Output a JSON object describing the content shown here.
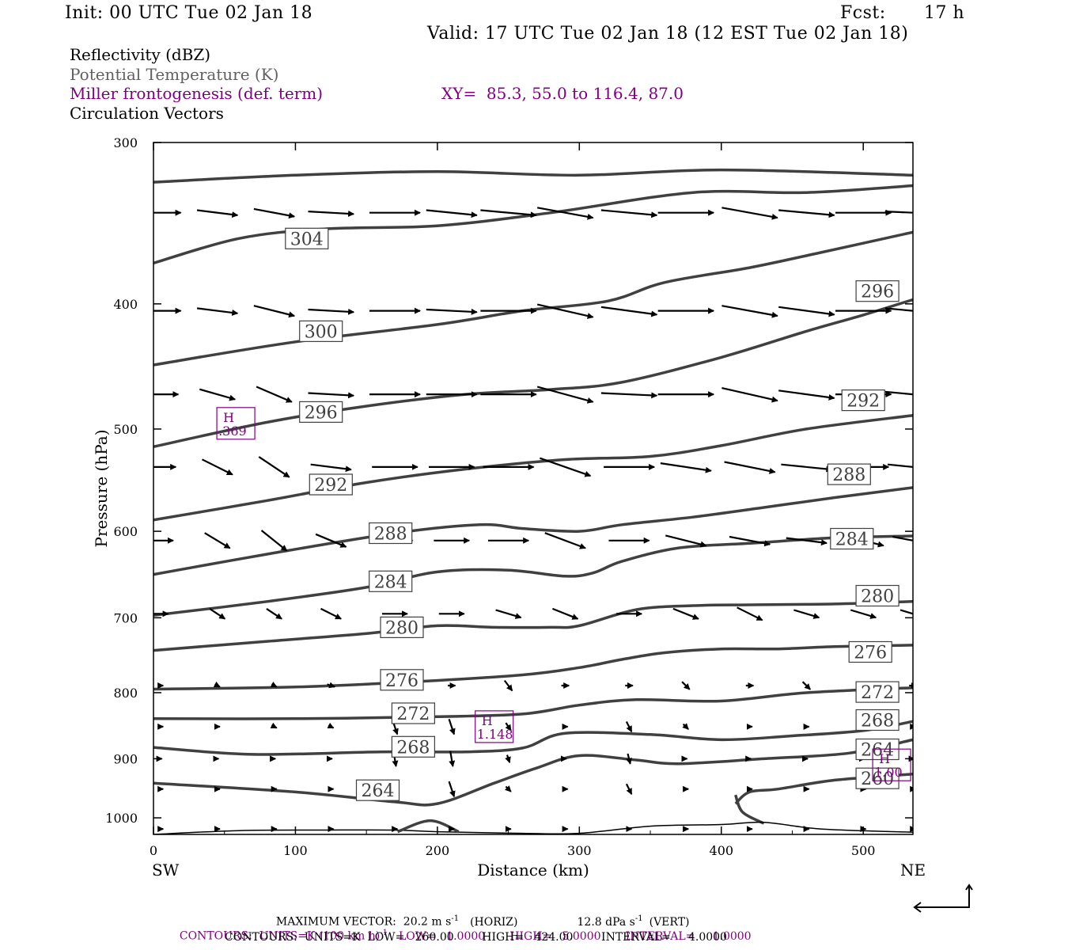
{
  "header": {
    "init": "Init: 00 UTC Tue 02 Jan 18",
    "fcst_label": "Fcst:",
    "fcst_value": "17 h",
    "valid": "Valid: 17 UTC Tue 02 Jan 18 (12 EST Tue 02 Jan 18)"
  },
  "legend": {
    "reflectivity": "Reflectivity (dBZ)",
    "theta": "Potential Temperature (K)",
    "frontogenesis": "Miller frontogenesis (def. term)",
    "xy": "XY=  85.3, 55.0 to 116.4, 87.0",
    "circulation": "Circulation Vectors"
  },
  "colors": {
    "theta_line": "#404040",
    "frontogenesis": "#800080",
    "legend_gray": "#606060",
    "vector": "#000000"
  },
  "chart_data": {
    "type": "line",
    "xlabel": "Distance (km)",
    "ylabel": "Pressure (hPa)",
    "xlim": [
      0,
      535
    ],
    "ylim": [
      1030,
      300
    ],
    "y_scale": "log",
    "x_ticks": [
      0,
      100,
      200,
      300,
      400,
      500
    ],
    "y_ticks": [
      300,
      400,
      500,
      600,
      700,
      800,
      900,
      1000
    ],
    "endpoints": {
      "left": "SW",
      "right": "NE"
    },
    "theta_contours": [
      {
        "level": 304,
        "points": [
          [
            0,
            322
          ],
          [
            100,
            318
          ],
          [
            200,
            316
          ],
          [
            300,
            318
          ],
          [
            400,
            315
          ],
          [
            535,
            318
          ]
        ],
        "labels": []
      },
      {
        "level": 304,
        "points": [
          [
            0,
            372
          ],
          [
            60,
            356
          ],
          [
            120,
            350
          ],
          [
            200,
            348
          ],
          [
            280,
            340
          ],
          [
            380,
            328
          ],
          [
            460,
            328
          ],
          [
            535,
            324
          ]
        ],
        "labels": [
          [
            108,
            356
          ]
        ]
      },
      {
        "level": 300,
        "points": [
          [
            0,
            446
          ],
          [
            100,
            428
          ],
          [
            200,
            415
          ],
          [
            260,
            405
          ],
          [
            320,
            398
          ],
          [
            360,
            385
          ],
          [
            420,
            375
          ],
          [
            470,
            365
          ],
          [
            535,
            352
          ]
        ],
        "labels": [
          [
            118,
            420
          ]
        ]
      },
      {
        "level": 296,
        "points": [
          [
            0,
            516
          ],
          [
            80,
            494
          ],
          [
            150,
            480
          ],
          [
            220,
            470
          ],
          [
            280,
            466
          ],
          [
            330,
            460
          ],
          [
            400,
            440
          ],
          [
            460,
            420
          ],
          [
            500,
            408
          ],
          [
            535,
            397
          ]
        ],
        "labels": [
          [
            118,
            485
          ],
          [
            510,
            391
          ]
        ]
      },
      {
        "level": 292,
        "points": [
          [
            0,
            588
          ],
          [
            80,
            568
          ],
          [
            150,
            550
          ],
          [
            220,
            537
          ],
          [
            290,
            528
          ],
          [
            350,
            525
          ],
          [
            400,
            515
          ],
          [
            460,
            500
          ],
          [
            535,
            488
          ]
        ],
        "labels": [
          [
            125,
            552
          ],
          [
            500,
            475
          ]
        ]
      },
      {
        "level": 288,
        "points": [
          [
            0,
            648
          ],
          [
            80,
            625
          ],
          [
            170,
            602
          ],
          [
            230,
            593
          ],
          [
            260,
            597
          ],
          [
            300,
            600
          ],
          [
            330,
            593
          ],
          [
            380,
            585
          ],
          [
            430,
            575
          ],
          [
            480,
            565
          ],
          [
            535,
            555
          ]
        ],
        "labels": [
          [
            167,
            602
          ],
          [
            490,
            542
          ]
        ]
      },
      {
        "level": 284,
        "points": [
          [
            0,
            697
          ],
          [
            80,
            680
          ],
          [
            150,
            663
          ],
          [
            200,
            645
          ],
          [
            250,
            643
          ],
          [
            290,
            650
          ],
          [
            310,
            646
          ],
          [
            330,
            633
          ],
          [
            370,
            618
          ],
          [
            420,
            613
          ],
          [
            480,
            607
          ],
          [
            535,
            605
          ]
        ],
        "labels": [
          [
            167,
            656
          ],
          [
            492,
            608
          ]
        ]
      },
      {
        "level": 280,
        "points": [
          [
            0,
            742
          ],
          [
            80,
            730
          ],
          [
            150,
            720
          ],
          [
            200,
            710
          ],
          [
            240,
            712
          ],
          [
            280,
            712
          ],
          [
            300,
            710
          ],
          [
            340,
            690
          ],
          [
            380,
            685
          ],
          [
            420,
            684
          ],
          [
            480,
            683
          ],
          [
            535,
            680
          ]
        ],
        "labels": [
          [
            175,
            712
          ],
          [
            510,
            673
          ]
        ]
      },
      {
        "level": 276,
        "points": [
          [
            0,
            795
          ],
          [
            100,
            792
          ],
          [
            180,
            785
          ],
          [
            260,
            775
          ],
          [
            300,
            765
          ],
          [
            330,
            754
          ],
          [
            360,
            745
          ],
          [
            400,
            740
          ],
          [
            440,
            740
          ],
          [
            480,
            737
          ],
          [
            535,
            735
          ]
        ],
        "labels": [
          [
            175,
            782
          ],
          [
            505,
            744
          ]
        ]
      },
      {
        "level": 272,
        "points": [
          [
            0,
            838
          ],
          [
            100,
            838
          ],
          [
            200,
            835
          ],
          [
            260,
            831
          ],
          [
            300,
            818
          ],
          [
            340,
            810
          ],
          [
            400,
            812
          ],
          [
            460,
            800
          ],
          [
            535,
            793
          ]
        ],
        "labels": [
          [
            183,
            830
          ],
          [
            510,
            799
          ]
        ]
      },
      {
        "level": 268,
        "points": [
          [
            0,
            882
          ],
          [
            70,
            893
          ],
          [
            160,
            889
          ],
          [
            220,
            889
          ],
          [
            260,
            883
          ],
          [
            290,
            860
          ],
          [
            350,
            862
          ],
          [
            400,
            870
          ],
          [
            450,
            864
          ],
          [
            500,
            856
          ],
          [
            535,
            842
          ]
        ],
        "labels": [
          [
            183,
            881
          ],
          [
            510,
            840
          ]
        ]
      },
      {
        "level": 264,
        "points": [
          [
            0,
            940
          ],
          [
            100,
            955
          ],
          [
            170,
            972
          ],
          [
            200,
            975
          ],
          [
            240,
            940
          ],
          [
            270,
            915
          ],
          [
            300,
            895
          ],
          [
            340,
            902
          ],
          [
            370,
            908
          ],
          [
            430,
            900
          ],
          [
            490,
            891
          ],
          [
            535,
            870
          ]
        ],
        "labels": [
          [
            158,
            952
          ],
          [
            510,
            885
          ]
        ]
      },
      {
        "level": 260,
        "points": [
          [
            410,
            975
          ],
          [
            420,
            955
          ],
          [
            440,
            950
          ],
          [
            480,
            935
          ],
          [
            535,
            925
          ]
        ],
        "labels": [
          [
            510,
            932
          ]
        ]
      }
    ],
    "theta_isolated": [
      {
        "level": 260,
        "points": [
          [
            410,
            960
          ],
          [
            415,
            990
          ],
          [
            430,
            1010
          ]
        ]
      }
    ],
    "thin_line": {
      "points": [
        [
          0,
          1030
        ],
        [
          60,
          1023
        ],
        [
          120,
          1022
        ],
        [
          170,
          1022
        ],
        [
          200,
          1025
        ],
        [
          260,
          1028
        ],
        [
          300,
          1028
        ],
        [
          350,
          1015
        ],
        [
          400,
          1012
        ],
        [
          430,
          1008
        ],
        [
          470,
          1020
        ],
        [
          535,
          1026
        ]
      ]
    },
    "terrain_bump": {
      "points": [
        [
          172,
          1025
        ],
        [
          195,
          1005
        ],
        [
          215,
          1025
        ]
      ]
    },
    "frontogenesis_maxima": [
      {
        "label": "H",
        "value": ".369",
        "x": 58,
        "p": 495
      },
      {
        "label": "H",
        "value": "1.148",
        "x": 240,
        "p": 850
      },
      {
        "label": "H",
        "value": "1.00",
        "x": 520,
        "p": 910
      }
    ],
    "vectors": {
      "x": [
        5,
        45,
        85,
        125,
        170,
        210,
        250,
        290,
        335,
        375,
        420,
        460,
        500,
        535
      ],
      "levels": [
        340,
        405,
        470,
        535,
        610,
        695,
        790,
        850,
        900,
        950,
        1020
      ],
      "u": [
        [
          16,
          16,
          16,
          18,
          20,
          20,
          22,
          22,
          22,
          22,
          22,
          22,
          22,
          22
        ],
        [
          16,
          16,
          16,
          18,
          20,
          20,
          22,
          22,
          22,
          22,
          22,
          22,
          22,
          22
        ],
        [
          14,
          14,
          14,
          18,
          20,
          20,
          22,
          22,
          22,
          22,
          22,
          22,
          22,
          22
        ],
        [
          12,
          12,
          12,
          16,
          18,
          18,
          20,
          20,
          20,
          20,
          20,
          20,
          20,
          20
        ],
        [
          10,
          10,
          10,
          12,
          14,
          14,
          16,
          16,
          16,
          16,
          16,
          16,
          16,
          16
        ],
        [
          6,
          6,
          6,
          8,
          10,
          10,
          10,
          10,
          10,
          10,
          10,
          10,
          10,
          10
        ],
        [
          2,
          2,
          2,
          3,
          3,
          3,
          3,
          3,
          3,
          3,
          3,
          3,
          3,
          3
        ],
        [
          2,
          2,
          2,
          2,
          2,
          2,
          2,
          2,
          2,
          2,
          2,
          2,
          2,
          2
        ],
        [
          1,
          1,
          1,
          1,
          1,
          1,
          1,
          1,
          1,
          1,
          1,
          1,
          1,
          1
        ],
        [
          2,
          2,
          2,
          2,
          2,
          2,
          2,
          2,
          2,
          2,
          2,
          2,
          2,
          2
        ],
        [
          2,
          2,
          2,
          2,
          2,
          2,
          2,
          2,
          2,
          2,
          2,
          2,
          2,
          2
        ]
      ],
      "w": [
        [
          0,
          -2,
          -3,
          -1,
          0,
          -2,
          -2,
          -4,
          -2,
          0,
          -4,
          -2,
          0,
          -1
        ],
        [
          0,
          -2,
          -4,
          -1,
          0,
          -1,
          0,
          -5,
          -3,
          0,
          -4,
          -3,
          0,
          -2
        ],
        [
          0,
          -4,
          -6,
          -1,
          0,
          0,
          0,
          -6,
          -1,
          0,
          -5,
          -3,
          0,
          -2
        ],
        [
          0,
          -6,
          -8,
          -2,
          0,
          0,
          0,
          -7,
          0,
          -3,
          -4,
          -2,
          0,
          -2
        ],
        [
          0,
          -6,
          -8,
          -5,
          0,
          0,
          0,
          -6,
          0,
          -4,
          -3,
          -2,
          -4,
          -3
        ],
        [
          0,
          -4,
          -4,
          -4,
          0,
          0,
          -3,
          -4,
          0,
          -4,
          -5,
          -3,
          -3,
          -3
        ],
        [
          0,
          -1,
          -1,
          -1,
          -1,
          0,
          -4,
          0,
          0,
          -3,
          0,
          -3,
          -2,
          0
        ],
        [
          0,
          0,
          -1,
          -1,
          -6,
          -6,
          -3,
          0,
          -4,
          -2,
          0,
          0,
          0,
          0
        ],
        [
          0,
          0,
          0,
          0,
          -6,
          -6,
          -3,
          0,
          -4,
          0,
          0,
          0,
          0,
          0
        ],
        [
          0,
          0,
          0,
          0,
          -6,
          -6,
          -2,
          0,
          -4,
          0,
          0,
          0,
          0,
          0
        ],
        [
          0,
          0,
          0,
          0,
          0,
          0,
          0,
          0,
          0,
          0,
          0,
          0,
          0,
          0
        ]
      ]
    }
  },
  "footer": {
    "max_vector": "MAXIMUM VECTOR:  20.2 m s",
    "max_vector_horiz": "(HORIZ)",
    "max_vector_vert": "12.8 dPa s",
    "max_vector_vert_tag": "(VERT)",
    "exp": "-1",
    "contours_fronto_a": "CONTOURS:  UNITS=K (100 km h)",
    "contours_fronto_b": "LOW=   1.0000       HIGH=   5.0000       INTERVAL=     1.0000",
    "contours_theta": "CONTOURS:  UNITS=K  LOW=   260.00        HIGH=   424.00        INTERVAL=     4.0000"
  }
}
